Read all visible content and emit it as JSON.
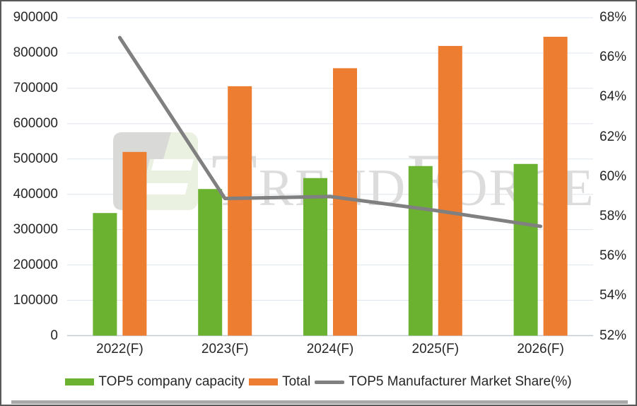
{
  "chart_data": {
    "type": "bar",
    "subtype": "grouped-bars-with-line-overlay",
    "title": "",
    "categories": [
      "2022(F)",
      "2023(F)",
      "2024(F)",
      "2025(F)",
      "2026(F)"
    ],
    "series": [
      {
        "name": "TOP5 company capacity",
        "type": "bar",
        "axis": "left",
        "color": "#6AB22F",
        "values": [
          347000,
          415000,
          446000,
          480000,
          486000
        ]
      },
      {
        "name": "Total",
        "type": "bar",
        "axis": "left",
        "color": "#ED7D31",
        "values": [
          520000,
          706000,
          757000,
          820000,
          846000
        ]
      },
      {
        "name": "TOP5 Manufacturer Market Share(%)",
        "type": "line",
        "axis": "right",
        "color": "#808080",
        "values": [
          67.0,
          58.9,
          59.0,
          58.3,
          57.5
        ]
      }
    ],
    "left_axis": {
      "min": 0,
      "max": 900000,
      "step": 100000,
      "tick_labels_top_to_bottom": [
        "900000",
        "800000",
        "700000",
        "600000",
        "500000",
        "400000",
        "300000",
        "200000",
        "100000",
        "0"
      ]
    },
    "right_axis": {
      "min": 52,
      "max": 68,
      "step": 2,
      "tick_labels_top_to_bottom": [
        "68%",
        "66%",
        "64%",
        "62%",
        "60%",
        "58%",
        "56%",
        "54%",
        "52%"
      ]
    },
    "grid": true,
    "legend_position": "bottom",
    "colors": {
      "gridline": "#dfe5ec",
      "baseline": "#c3cad3",
      "bar_gap_green": "#6AB22F",
      "bar_orange": "#ED7D31",
      "line_gray": "#808080"
    }
  },
  "watermark": {
    "text": "TrendForce",
    "logo": "trendforce-logo"
  },
  "legend": {
    "item1": "TOP5 company capacity",
    "item2": "Total",
    "item3": "TOP5 Manufacturer Market Share(%)"
  }
}
